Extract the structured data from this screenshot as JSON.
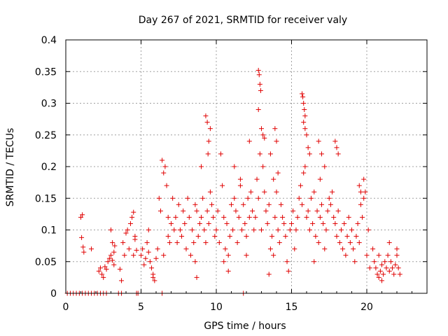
{
  "chart_data": {
    "type": "scatter",
    "title": "Day 267 of 2021, SRMTID for receiver valy",
    "xlabel": "GPS time / hours",
    "ylabel": "SRMTID / TECUs",
    "xlim": [
      0,
      24
    ],
    "ylim": [
      0,
      0.4
    ],
    "x_ticks": [
      0,
      5,
      10,
      15,
      20
    ],
    "x_tick_labels": [
      "0",
      "5",
      "10",
      "15",
      "20"
    ],
    "y_ticks": [
      0,
      0.05,
      0.1,
      0.15,
      0.2,
      0.25,
      0.3,
      0.35,
      0.4
    ],
    "y_tick_labels": [
      "0",
      "0.05",
      "0.1",
      "0.15",
      "0.2",
      "0.25",
      "0.3",
      "0.35",
      "0.4"
    ],
    "grid": true,
    "marker": "+",
    "color": "#e00000",
    "series": [
      {
        "name": "SRMTID",
        "x": [
          0.1,
          0.3,
          0.5,
          0.7,
          0.9,
          1.1,
          1.3,
          1.5,
          1.7,
          1.9,
          2.1,
          2.3,
          2.5,
          2.7,
          3.5,
          3.7,
          4.7,
          4.8,
          6.4,
          11.8,
          1.0,
          1.05,
          1.1,
          1.15,
          1.2,
          1.7,
          2.2,
          2.3,
          2.4,
          2.5,
          2.6,
          2.7,
          2.8,
          2.9,
          3.0,
          3.0,
          3.1,
          3.1,
          3.2,
          3.2,
          3.25,
          3.6,
          3.7,
          3.8,
          3.9,
          4.0,
          4.1,
          4.2,
          4.3,
          4.4,
          4.5,
          4.5,
          4.6,
          4.6,
          4.7,
          5.0,
          5.1,
          5.2,
          5.3,
          5.4,
          5.5,
          5.6,
          5.7,
          5.8,
          5.9,
          6.0,
          6.1,
          5.5,
          5.8,
          6.2,
          6.3,
          6.4,
          6.5,
          6.6,
          6.7,
          6.8,
          6.9,
          7.0,
          7.1,
          6.5,
          6.8,
          7.2,
          7.3,
          7.4,
          7.5,
          7.6,
          7.7,
          7.8,
          7.9,
          8.0,
          8.1,
          8.2,
          8.3,
          8.4,
          8.5,
          8.6,
          8.7,
          8.8,
          8.9,
          9.0,
          9.1,
          9.2,
          9.3,
          9.4,
          9.5,
          9.6,
          9.7,
          9.8,
          9.9,
          9.3,
          9.4,
          9.5,
          9.45,
          9.6,
          9.0,
          8.6,
          8.7,
          10.0,
          10.1,
          10.2,
          10.3,
          10.4,
          10.5,
          10.6,
          10.7,
          10.8,
          10.9,
          11.0,
          11.1,
          11.2,
          11.3,
          11.4,
          11.5,
          11.6,
          11.7,
          11.8,
          11.9,
          12.0,
          12.1,
          12.2,
          12.3,
          12.4,
          12.5,
          10.5,
          10.8,
          11.2,
          11.6,
          12.0,
          12.2,
          12.6,
          12.7,
          12.8,
          12.9,
          13.0,
          13.1,
          13.2,
          13.3,
          13.4,
          13.5,
          13.6,
          13.7,
          13.8,
          13.9,
          14.0,
          14.1,
          14.2,
          14.3,
          14.4,
          14.5,
          12.8,
          12.85,
          12.9,
          12.95,
          12.8,
          13.0,
          13.1,
          13.2,
          13.5,
          13.9,
          14.0,
          14.1,
          13.8,
          13.6,
          14.6,
          14.7,
          14.8,
          14.9,
          15.0,
          15.1,
          15.2,
          15.3,
          15.4,
          15.5,
          15.6,
          15.7,
          15.8,
          15.9,
          16.0,
          16.1,
          16.2,
          16.3,
          16.4,
          16.5,
          16.6,
          16.7,
          16.8,
          16.9,
          17.0,
          17.1,
          17.2,
          17.3,
          17.4,
          17.5,
          15.7,
          15.75,
          15.8,
          15.85,
          15.9,
          15.8,
          15.9,
          16.0,
          16.2,
          16.1,
          16.5,
          16.9,
          17.0,
          17.2,
          16.8,
          17.6,
          17.7,
          17.8,
          17.9,
          18.0,
          18.1,
          18.2,
          18.3,
          18.4,
          18.5,
          18.6,
          18.7,
          18.8,
          18.9,
          19.0,
          19.1,
          19.2,
          19.3,
          19.4,
          19.5,
          19.6,
          19.7,
          19.8,
          19.9,
          20.0,
          20.1,
          20.2,
          17.9,
          18.0,
          18.1,
          19.5,
          19.6,
          19.8,
          20.4,
          20.5,
          20.6,
          20.7,
          20.8,
          20.9,
          21.0,
          21.1,
          21.2,
          21.3,
          21.4,
          21.5,
          21.6,
          21.7,
          21.8,
          21.9,
          22.0,
          22.1,
          22.2,
          20.8,
          21.0,
          21.5,
          22.0
        ],
        "y": [
          0,
          0,
          0,
          0,
          0,
          0,
          0,
          0,
          0,
          0,
          0,
          0,
          0,
          0,
          0,
          0,
          0,
          0,
          0,
          0,
          0.12,
          0.088,
          0.124,
          0.073,
          0.065,
          0.07,
          0.035,
          0.04,
          0.03,
          0.025,
          0.042,
          0.038,
          0.05,
          0.055,
          0.1,
          0.06,
          0.052,
          0.08,
          0.065,
          0.045,
          0.075,
          0.038,
          0.02,
          0.08,
          0.06,
          0.095,
          0.1,
          0.07,
          0.11,
          0.12,
          0.128,
          0.06,
          0.09,
          0.085,
          0.068,
          0.06,
          0.07,
          0.045,
          0.055,
          0.08,
          0.065,
          0.05,
          0.04,
          0.03,
          0.02,
          0.055,
          0.07,
          0.1,
          0.025,
          0.15,
          0.13,
          0.21,
          0.19,
          0.2,
          0.17,
          0.12,
          0.08,
          0.11,
          0.15,
          0.06,
          0.09,
          0.1,
          0.12,
          0.08,
          0.14,
          0.1,
          0.09,
          0.13,
          0.11,
          0.07,
          0.15,
          0.12,
          0.06,
          0.1,
          0.08,
          0.14,
          0.13,
          0.09,
          0.11,
          0.12,
          0.15,
          0.1,
          0.08,
          0.13,
          0.11,
          0.16,
          0.14,
          0.12,
          0.09,
          0.28,
          0.27,
          0.24,
          0.22,
          0.26,
          0.2,
          0.05,
          0.025,
          0.1,
          0.13,
          0.08,
          0.22,
          0.17,
          0.12,
          0.07,
          0.11,
          0.06,
          0.09,
          0.14,
          0.1,
          0.15,
          0.13,
          0.08,
          0.12,
          0.17,
          0.1,
          0.14,
          0.11,
          0.09,
          0.15,
          0.12,
          0.16,
          0.13,
          0.1,
          0.05,
          0.035,
          0.2,
          0.18,
          0.06,
          0.24,
          0.12,
          0.18,
          0.15,
          0.22,
          0.1,
          0.2,
          0.16,
          0.13,
          0.11,
          0.14,
          0.07,
          0.09,
          0.18,
          0.12,
          0.16,
          0.1,
          0.08,
          0.14,
          0.12,
          0.11,
          0.352,
          0.345,
          0.33,
          0.32,
          0.29,
          0.26,
          0.25,
          0.245,
          0.03,
          0.26,
          0.24,
          0.19,
          0.06,
          0.22,
          0.09,
          0.05,
          0.035,
          0.1,
          0.11,
          0.13,
          0.07,
          0.1,
          0.12,
          0.15,
          0.17,
          0.14,
          0.19,
          0.2,
          0.12,
          0.13,
          0.1,
          0.15,
          0.11,
          0.16,
          0.09,
          0.13,
          0.08,
          0.12,
          0.14,
          0.11,
          0.07,
          0.1,
          0.13,
          0.15,
          0.315,
          0.31,
          0.3,
          0.29,
          0.28,
          0.27,
          0.26,
          0.25,
          0.22,
          0.23,
          0.05,
          0.18,
          0.22,
          0.2,
          0.24,
          0.14,
          0.16,
          0.12,
          0.11,
          0.09,
          0.13,
          0.08,
          0.1,
          0.07,
          0.11,
          0.06,
          0.09,
          0.12,
          0.08,
          0.1,
          0.07,
          0.05,
          0.09,
          0.11,
          0.08,
          0.14,
          0.12,
          0.18,
          0.16,
          0.06,
          0.1,
          0.04,
          0.24,
          0.23,
          0.22,
          0.17,
          0.16,
          0.15,
          0.07,
          0.05,
          0.04,
          0.03,
          0.06,
          0.035,
          0.045,
          0.03,
          0.05,
          0.04,
          0.06,
          0.035,
          0.05,
          0.04,
          0.03,
          0.045,
          0.06,
          0.04,
          0.03,
          0.025,
          0.02,
          0.08,
          0.07
        ]
      }
    ]
  }
}
